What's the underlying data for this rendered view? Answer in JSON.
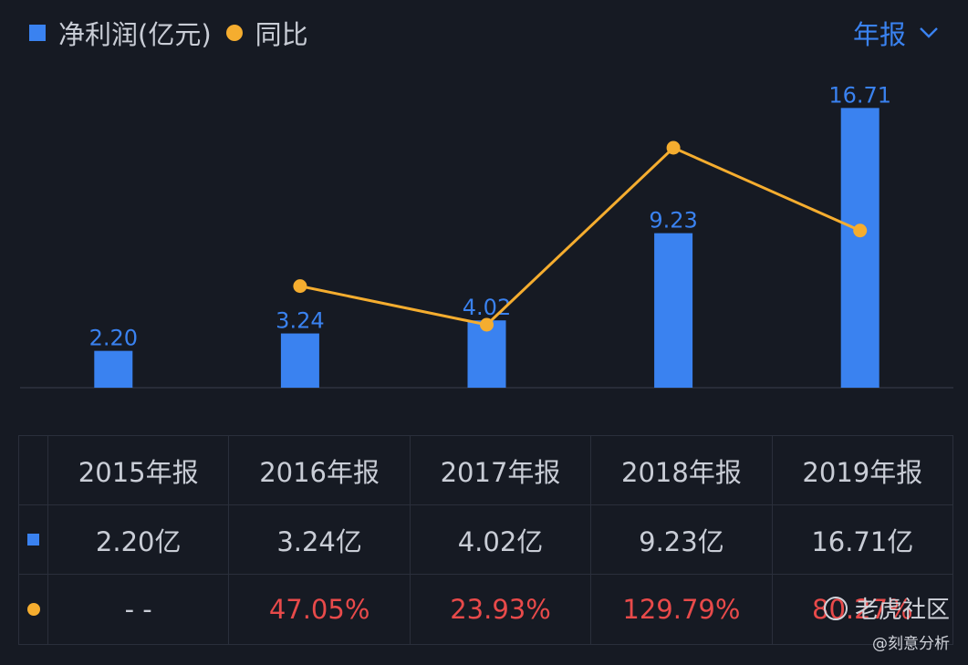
{
  "legend": {
    "bar_label": "净利润(亿元)",
    "line_label": "同比"
  },
  "period_selector": {
    "label": "年报",
    "icon": "chevron-down-icon"
  },
  "colors": {
    "bar": "#3a82f0",
    "line": "#f5ad2f",
    "positive": "#e84a4a",
    "text": "#c9cdd6",
    "background": "#161a23"
  },
  "chart_data": {
    "type": "bar",
    "categories": [
      "2015年报",
      "2016年报",
      "2017年报",
      "2018年报",
      "2019年报"
    ],
    "series": [
      {
        "name": "净利润(亿元)",
        "type": "bar",
        "values": [
          2.2,
          3.24,
          4.02,
          9.23,
          16.71
        ],
        "labels": [
          "2.20",
          "3.24",
          "4.02",
          "9.23",
          "16.71"
        ]
      },
      {
        "name": "同比",
        "type": "line",
        "values": [
          null,
          47.05,
          23.93,
          129.79,
          80.27
        ]
      }
    ],
    "title": "",
    "xlabel": "",
    "ylabel": "",
    "grid": false,
    "legend": "top-left"
  },
  "table": {
    "headers": [
      "2015年报",
      "2016年报",
      "2017年报",
      "2018年报",
      "2019年报"
    ],
    "profit": [
      "2.20亿",
      "3.24亿",
      "4.02亿",
      "9.23亿",
      "16.71亿"
    ],
    "yoy": [
      "- -",
      "47.05%",
      "23.93%",
      "129.79%",
      "80.27%"
    ]
  },
  "watermark": {
    "brand": "老虎社区",
    "handle": "@刻意分析"
  }
}
